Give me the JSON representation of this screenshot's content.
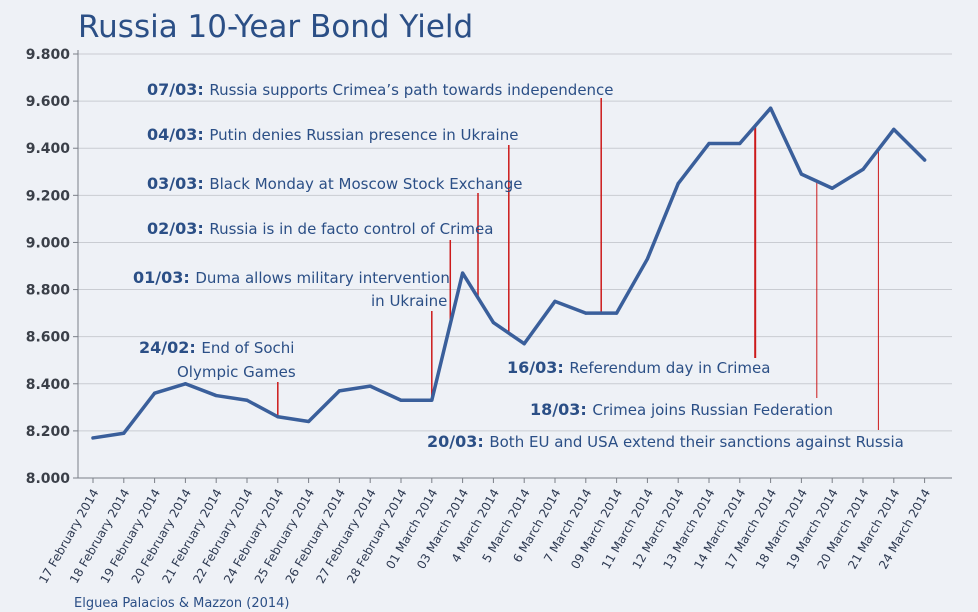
{
  "chart_data": {
    "type": "line",
    "title": "Russia 10-Year Bond Yield",
    "xlabel": "",
    "ylabel": "",
    "ylim": [
      8.0,
      9.8
    ],
    "yticks": [
      "8.000",
      "8.200",
      "8.400",
      "8.600",
      "8.800",
      "9.000",
      "9.200",
      "9.400",
      "9.600",
      "9.800"
    ],
    "grid": true,
    "categories": [
      "17 February 2014",
      "18 February 2014",
      "19 February 2014",
      "20 February 2014",
      "21 February 2014",
      "22 February 2014",
      "24 February 2014",
      "25 February 2014",
      "26 February 2014",
      "27 February 2014",
      "28 February 2014",
      "01 March 2014",
      "03 March 2014",
      "4 March 2014",
      "5 March 2014",
      "6 March 2014",
      "7 March 2014",
      "09 March 2014",
      "11 March 2014",
      "12 March 2014",
      "13 March 2014",
      "14 March 2014",
      "17 March 2014",
      "18 March 2014",
      "19 March 2014",
      "20 March 2014",
      "21 March 2014",
      "24 March 2014"
    ],
    "series": [
      {
        "name": "Russia 10-Year Bond Yield",
        "color": "#3a5f9b",
        "values": [
          8.17,
          8.19,
          8.36,
          8.4,
          8.35,
          8.33,
          8.26,
          8.24,
          8.37,
          8.39,
          8.33,
          8.33,
          8.87,
          8.66,
          8.57,
          8.75,
          8.7,
          8.7,
          8.93,
          9.25,
          9.42,
          9.42,
          9.57,
          9.29,
          9.23,
          9.31,
          9.48,
          9.35
        ]
      }
    ],
    "annotations": [
      {
        "date": "07/03",
        "text": "Russia supports Crimea’s path towards independence"
      },
      {
        "date": "04/03",
        "text": "Putin denies Russian presence in Ukraine"
      },
      {
        "date": "03/03",
        "text": "Black Monday at Moscow Stock Exchange"
      },
      {
        "date": "02/03",
        "text": "Russia is in de facto control of Crimea"
      },
      {
        "date": "01/03",
        "text": "Duma allows military intervention",
        "text2": "in Ukraine"
      },
      {
        "date": "24/02",
        "text": "End of Sochi",
        "text2": "Olympic Games"
      },
      {
        "date": "16/03",
        "text": "Referendum day in Crimea"
      },
      {
        "date": "18/03",
        "text": "Crimea joins Russian Federation"
      },
      {
        "date": "20/03",
        "text": "Both EU and USA extend their sanctions against Russia"
      }
    ],
    "source": "Elguea Palacios & Mazzon (2014)"
  },
  "colors": {
    "background": "#eef1f6",
    "line": "#3a5f9b",
    "text": "#2b4f86",
    "marker_line": "#cc1a1a",
    "grid": "#c9ccd2"
  }
}
